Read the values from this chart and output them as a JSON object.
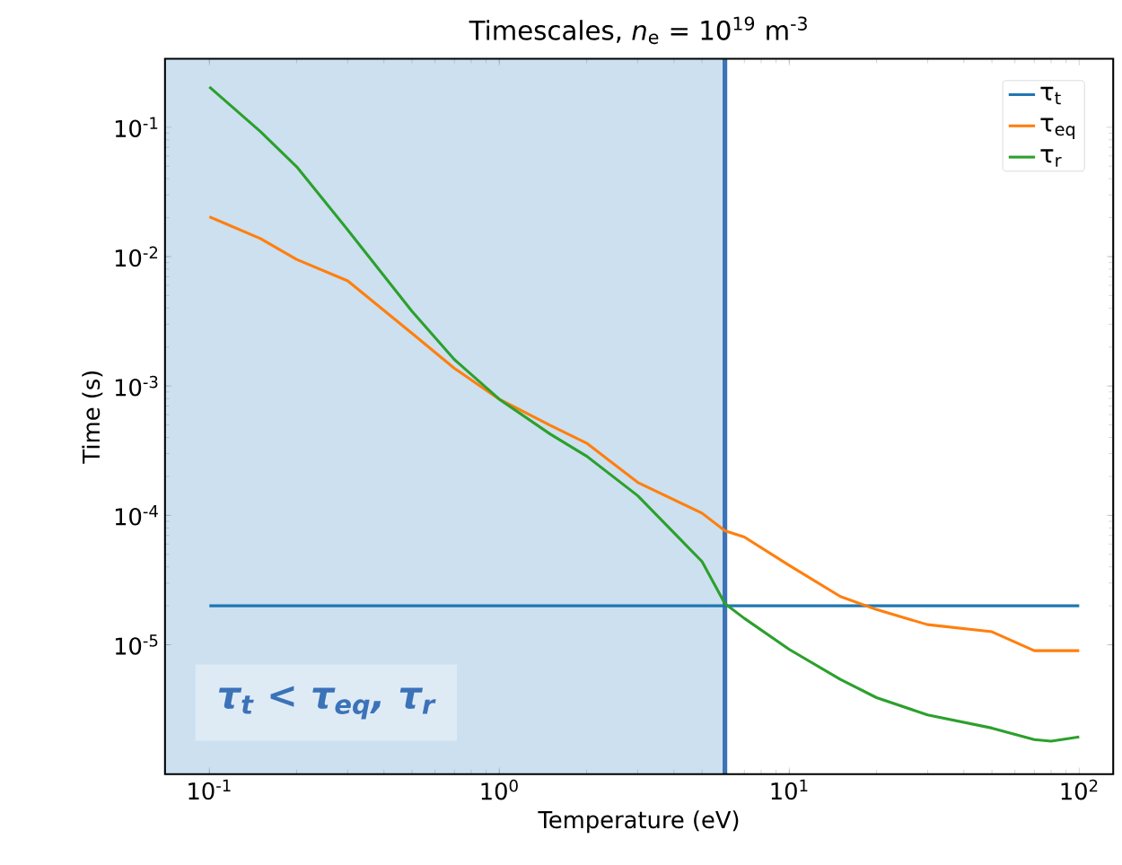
{
  "chart_data": {
    "type": "line",
    "title": "Timescales, *n*$_{e}$ = 10$^{19}$ m$^{-3}$",
    "xlabel": "Temperature (eV)",
    "ylabel": "Time (s)",
    "log": "xy",
    "x": [
      0.1,
      0.15,
      0.2,
      0.3,
      0.5,
      0.7,
      1,
      1.5,
      2,
      3,
      5,
      6,
      7,
      10,
      15,
      20,
      30,
      50,
      70,
      80,
      100
    ],
    "series": [
      {
        "name": "τ$_{t}$",
        "color": "#1f77b4",
        "values": [
          2e-05,
          2e-05,
          2e-05,
          2e-05,
          2e-05,
          2e-05,
          2e-05,
          2e-05,
          2e-05,
          2e-05,
          2e-05,
          2e-05,
          2e-05,
          2e-05,
          2e-05,
          2e-05,
          2e-05,
          2e-05,
          2e-05,
          2e-05,
          2e-05
        ]
      },
      {
        "name": "τ$_{eq}$",
        "color": "#ff7f0e",
        "values": [
          0.0203,
          0.0138,
          0.0095,
          0.0065,
          0.00255,
          0.00137,
          0.00079,
          0.000495,
          0.000362,
          0.00018,
          0.000104,
          7.6e-05,
          6.8e-05,
          4.1e-05,
          2.36e-05,
          1.87e-05,
          1.43e-05,
          1.26e-05,
          9e-06,
          9e-06,
          9e-06
        ]
      },
      {
        "name": "τ$_{r}$",
        "color": "#2ca02c",
        "values": [
          0.205,
          0.0925,
          0.0495,
          0.0161,
          0.00377,
          0.0016,
          0.00079,
          0.000424,
          0.000287,
          0.000142,
          4.4e-05,
          2.08e-05,
          1.6e-05,
          9.2e-06,
          5.4e-06,
          3.9e-06,
          2.87e-06,
          2.27e-06,
          1.85e-06,
          1.8e-06,
          1.94e-06
        ]
      }
    ],
    "xlim": [
      0.0703,
      131
    ],
    "ylim": [
      1e-06,
      0.338
    ],
    "xticks": [
      {
        "value": 0.1,
        "label": "10$^{-1}$"
      },
      {
        "value": 1,
        "label": "10$^{0}$"
      },
      {
        "value": 10,
        "label": "10$^{1}$"
      },
      {
        "value": 100,
        "label": "10$^{2}$"
      }
    ],
    "yticks": [
      {
        "value": 1e-05,
        "label": "10$^{-5}$"
      },
      {
        "value": 0.0001,
        "label": "10$^{-4}$"
      },
      {
        "value": 0.001,
        "label": "10$^{-3}$"
      },
      {
        "value": 0.01,
        "label": "10$^{-2}$"
      },
      {
        "value": 0.1,
        "label": "10$^{-1}$"
      }
    ],
    "bands": [
      {
        "axis": "x",
        "from": 0.0703,
        "to": 6,
        "color": "#cce0f0",
        "label": "τ$_{t}$ < τ$_{eq}$, τ$_{r}$"
      }
    ],
    "ref_lines": [
      {
        "axis": "x",
        "value": 6,
        "color": "#3b72b8"
      }
    ],
    "legend": "top right",
    "grid": false,
    "marker": "none",
    "line_style": "solid"
  }
}
